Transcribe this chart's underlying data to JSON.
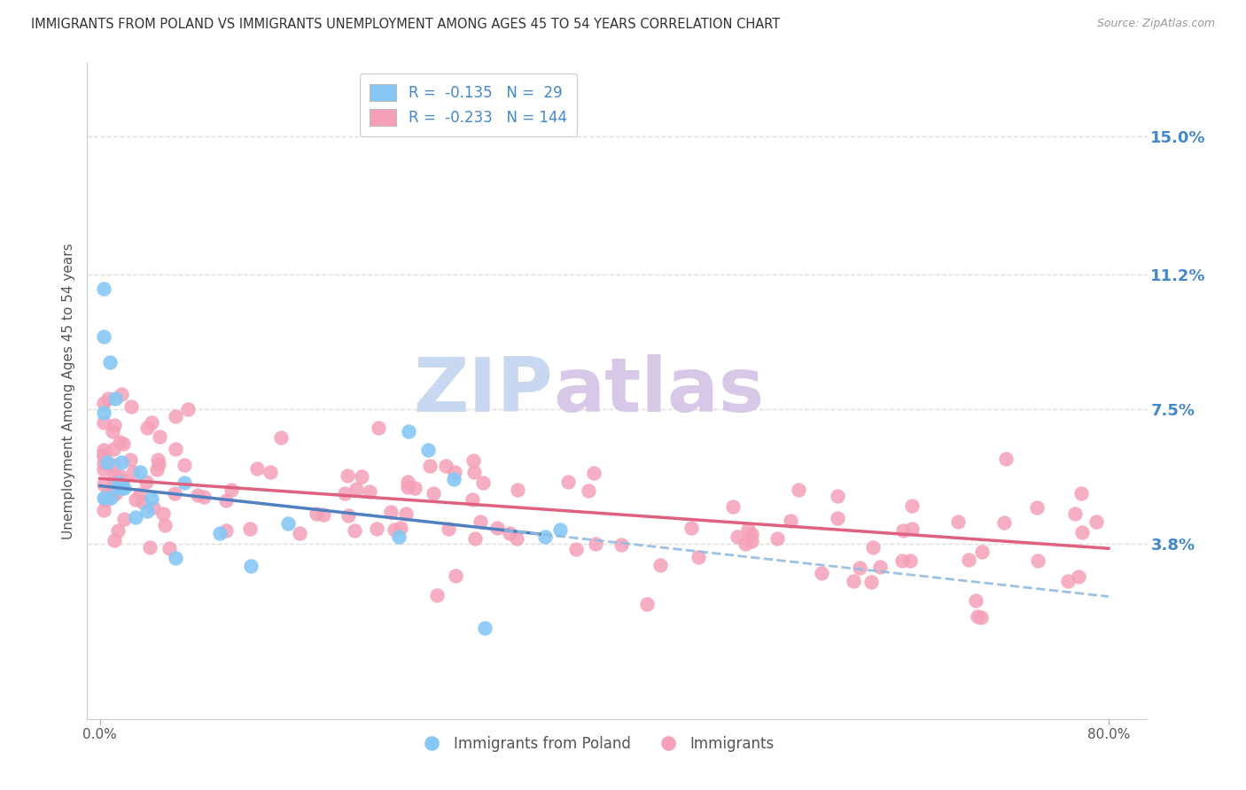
{
  "title": "IMMIGRANTS FROM POLAND VS IMMIGRANTS UNEMPLOYMENT AMONG AGES 45 TO 54 YEARS CORRELATION CHART",
  "source": "Source: ZipAtlas.com",
  "ylabel": "Unemployment Among Ages 45 to 54 years",
  "right_ytick_vals": [
    3.8,
    7.5,
    11.2,
    15.0
  ],
  "right_ytick_labels": [
    "3.8%",
    "7.5%",
    "11.2%",
    "15.0%"
  ],
  "xlim": [
    -1,
    83
  ],
  "ylim": [
    -1.0,
    17.0
  ],
  "series1_color": "#85c8f5",
  "series2_color": "#f5a0b8",
  "trend_solid_color": "#5080c0",
  "trend_solid_pink_color": "#e06080",
  "trend_dashed_color": "#90bce0",
  "watermark_zip": "ZIP",
  "watermark_atlas": "atlas",
  "watermark_zip_color": "#c8d8f0",
  "watermark_atlas_color": "#d8c8e8",
  "title_color": "#333333",
  "axis_label_color": "#555555",
  "right_axis_color": "#4488cc",
  "legend_text_color": "#4488cc",
  "grid_color": "#dddddd",
  "legend1_label1": "R =  -0.135   N =  29",
  "legend1_label2": "R =  -0.233   N = 144",
  "legend2_label1": "Immigrants from Poland",
  "legend2_label2": "Immigrants",
  "trend1_intercept": 5.4,
  "trend1_slope": -0.038,
  "trend2_intercept": 5.6,
  "trend2_slope": -0.024
}
